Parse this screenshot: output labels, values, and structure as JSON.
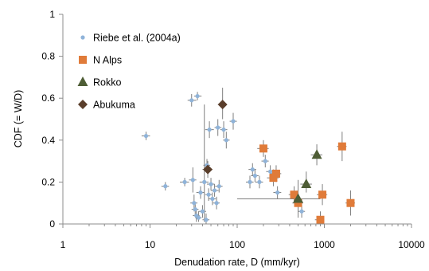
{
  "chart_data": {
    "type": "scatter",
    "title": "",
    "xlabel": "Denudation rate, D (mm/kyr)",
    "ylabel": "CDF (= W/D)",
    "x_scale": "log",
    "xlim": [
      1,
      10000
    ],
    "ylim": [
      0,
      1
    ],
    "x_ticks": [
      1,
      10,
      100,
      1000,
      10000
    ],
    "x_tick_labels": [
      "1",
      "10",
      "100",
      "1000",
      "10000"
    ],
    "y_ticks": [
      0,
      0.2,
      0.4,
      0.6,
      0.8,
      1
    ],
    "y_tick_labels": [
      "0",
      "0.2",
      "0.4",
      "0.6",
      "0.8",
      "1"
    ],
    "grid": false,
    "legend_position": "top-left",
    "series": [
      {
        "name": "Riebe et al. (2004a)",
        "color": "#8fb3d9",
        "marker": "circle",
        "errorbar_color": "#7f7f7f",
        "points": [
          {
            "x": 9,
            "y": 0.42,
            "x_err": [
              8,
              10
            ],
            "y_err": [
              0.4,
              0.44
            ]
          },
          {
            "x": 15,
            "y": 0.18,
            "x_err": [
              13.5,
              16.5
            ],
            "y_err": [
              0.16,
              0.2
            ]
          },
          {
            "x": 25,
            "y": 0.2,
            "x_err": [
              22,
              28
            ],
            "y_err": [
              0.18,
              0.22
            ]
          },
          {
            "x": 30,
            "y": 0.59,
            "x_err": [
              27,
              34
            ],
            "y_err": [
              0.56,
              0.62
            ]
          },
          {
            "x": 35,
            "y": 0.61,
            "x_err": [
              32,
              39
            ],
            "y_err": [
              0.59,
              0.63
            ]
          },
          {
            "x": 31,
            "y": 0.21,
            "x_err": [
              28,
              34
            ],
            "y_err": [
              0.15,
              0.27
            ]
          },
          {
            "x": 32,
            "y": 0.1,
            "x_err": [
              29,
              35
            ],
            "y_err": [
              0.06,
              0.14
            ]
          },
          {
            "x": 33,
            "y": 0.07,
            "x_err": [
              30,
              36
            ],
            "y_err": [
              0.04,
              0.1
            ]
          },
          {
            "x": 34,
            "y": 0.04,
            "x_err": [
              31,
              37
            ],
            "y_err": [
              0.01,
              0.07
            ]
          },
          {
            "x": 36,
            "y": 0.03,
            "x_err": [
              33,
              39
            ],
            "y_err": [
              0.01,
              0.06
            ]
          },
          {
            "x": 38,
            "y": 0.15,
            "x_err": [
              34,
              42
            ],
            "y_err": [
              0.12,
              0.18
            ]
          },
          {
            "x": 40,
            "y": 0.06,
            "x_err": [
              36,
              44
            ],
            "y_err": [
              0.03,
              0.09
            ]
          },
          {
            "x": 42,
            "y": 0.2,
            "x_err": [
              37,
              47
            ],
            "y_err": [
              0.01,
              0.57
            ]
          },
          {
            "x": 44,
            "y": 0.02,
            "x_err": [
              40,
              48
            ],
            "y_err": [
              0.0,
              0.05
            ]
          },
          {
            "x": 45,
            "y": 0.28,
            "x_err": [
              41,
              49
            ],
            "y_err": [
              0.25,
              0.31
            ]
          },
          {
            "x": 47,
            "y": 0.14,
            "x_err": [
              43,
              51
            ],
            "y_err": [
              0.11,
              0.17
            ]
          },
          {
            "x": 48,
            "y": 0.45,
            "x_err": [
              43,
              54
            ],
            "y_err": [
              0.41,
              0.49
            ]
          },
          {
            "x": 50,
            "y": 0.19,
            "x_err": [
              45,
              55
            ],
            "y_err": [
              0.16,
              0.22
            ]
          },
          {
            "x": 52,
            "y": 0.12,
            "x_err": [
              47,
              57
            ],
            "y_err": [
              0.09,
              0.15
            ]
          },
          {
            "x": 55,
            "y": 0.16,
            "x_err": [
              50,
              61
            ],
            "y_err": [
              0.13,
              0.19
            ]
          },
          {
            "x": 58,
            "y": 0.1,
            "x_err": [
              53,
              63
            ],
            "y_err": [
              0.07,
              0.13
            ]
          },
          {
            "x": 60,
            "y": 0.46,
            "x_err": [
              55,
              66
            ],
            "y_err": [
              0.42,
              0.5
            ]
          },
          {
            "x": 62,
            "y": 0.18,
            "x_err": [
              56,
              68
            ],
            "y_err": [
              0.15,
              0.21
            ]
          },
          {
            "x": 70,
            "y": 0.45,
            "x_err": [
              64,
              77
            ],
            "y_err": [
              0.41,
              0.49
            ]
          },
          {
            "x": 75,
            "y": 0.4,
            "x_err": [
              69,
              82
            ],
            "y_err": [
              0.36,
              0.44
            ]
          },
          {
            "x": 90,
            "y": 0.49,
            "x_err": [
              82,
              99
            ],
            "y_err": [
              0.45,
              0.53
            ]
          },
          {
            "x": 140,
            "y": 0.2,
            "x_err": [
              126,
              154
            ],
            "y_err": [
              0.17,
              0.23
            ]
          },
          {
            "x": 150,
            "y": 0.26,
            "x_err": [
              135,
              165
            ],
            "y_err": [
              0.23,
              0.29
            ]
          },
          {
            "x": 160,
            "y": 0.23,
            "x_err": [
              144,
              176
            ],
            "y_err": [
              0.2,
              0.26
            ]
          },
          {
            "x": 180,
            "y": 0.2,
            "x_err": [
              162,
              198
            ],
            "y_err": [
              0.17,
              0.23
            ]
          },
          {
            "x": 210,
            "y": 0.3,
            "x_err": [
              190,
              230
            ],
            "y_err": [
              0.27,
              0.33
            ]
          },
          {
            "x": 240,
            "y": 0.25,
            "x_err": [
              215,
              265
            ],
            "y_err": [
              0.22,
              0.28
            ]
          },
          {
            "x": 290,
            "y": 0.15,
            "x_err": [
              260,
              320
            ],
            "y_err": [
              0.12,
              0.18
            ]
          },
          {
            "x": 550,
            "y": 0.06,
            "x_err": [
              500,
              600
            ],
            "y_err": [
              0.03,
              0.09
            ]
          }
        ]
      },
      {
        "name": "N Alps",
        "color": "#e07b39",
        "marker": "square",
        "errorbar_color": "#7f7f7f",
        "points": [
          {
            "x": 200,
            "y": 0.36,
            "x_err": [
              170,
              230
            ],
            "y_err": [
              0.32,
              0.4
            ]
          },
          {
            "x": 260,
            "y": 0.22,
            "x_err": [
              220,
              300
            ],
            "y_err": [
              0.18,
              0.26
            ]
          },
          {
            "x": 280,
            "y": 0.24,
            "x_err": [
              240,
              320
            ],
            "y_err": [
              0.2,
              0.28
            ]
          },
          {
            "x": 450,
            "y": 0.14,
            "x_err": [
              390,
              510
            ],
            "y_err": [
              0.1,
              0.18
            ]
          },
          {
            "x": 500,
            "y": 0.1,
            "x_err": [
              430,
              570
            ],
            "y_err": [
              0.06,
              0.14
            ]
          },
          {
            "x": 900,
            "y": 0.02,
            "x_err": [
              780,
              1000
            ],
            "y_err": [
              0.0,
              0.06
            ]
          },
          {
            "x": 950,
            "y": 0.14,
            "x_err": [
              820,
              1080
            ],
            "y_err": [
              0.09,
              0.19
            ]
          },
          {
            "x": 1600,
            "y": 0.37,
            "x_err": [
              1400,
              1800
            ],
            "y_err": [
              0.3,
              0.44
            ]
          },
          {
            "x": 2000,
            "y": 0.1,
            "x_err": [
              1750,
              2250
            ],
            "y_err": [
              0.04,
              0.16
            ]
          }
        ]
      },
      {
        "name": "Rokko",
        "color": "#4e5d35",
        "marker": "triangle",
        "errorbar_color": "#7f7f7f",
        "points": [
          {
            "x": 500,
            "y": 0.12,
            "x_err": [
              100,
              900
            ],
            "y_err": [
              0.03,
              0.21
            ]
          },
          {
            "x": 620,
            "y": 0.19,
            "x_err": [
              530,
              720
            ],
            "y_err": [
              0.15,
              0.25
            ]
          },
          {
            "x": 820,
            "y": 0.33,
            "x_err": [
              700,
              950
            ],
            "y_err": [
              0.28,
              0.38
            ]
          }
        ]
      },
      {
        "name": "Abukuma",
        "color": "#5a3e2b",
        "marker": "diamond",
        "errorbar_color": "#7f7f7f",
        "points": [
          {
            "x": 46,
            "y": 0.26,
            "x_err": [
              40,
              52
            ],
            "y_err": [
              0.22,
              0.3
            ]
          },
          {
            "x": 68,
            "y": 0.57,
            "x_err": [
              60,
              76
            ],
            "y_err": [
              0.5,
              0.65
            ]
          }
        ]
      }
    ]
  }
}
